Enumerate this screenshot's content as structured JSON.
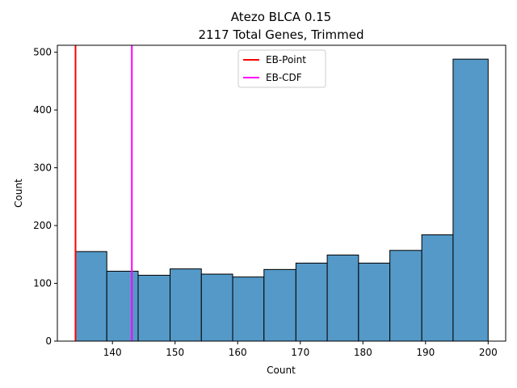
{
  "chart_data": {
    "type": "bar",
    "title": "Atezo BLCA 0.15",
    "subtitle": "2117 Total Genes, Trimmed",
    "xlabel": "Count",
    "ylabel": "Count",
    "xlim": [
      131.2,
      202.8
    ],
    "ylim": [
      0,
      512
    ],
    "xticks": [
      140,
      150,
      160,
      170,
      180,
      190,
      200
    ],
    "yticks": [
      0,
      100,
      200,
      300,
      400,
      500
    ],
    "bin_edges": [
      134.1,
      139.1,
      144.1,
      149.2,
      154.2,
      159.2,
      164.2,
      169.3,
      174.3,
      179.3,
      184.3,
      189.4,
      194.4,
      200.0
    ],
    "values": [
      155,
      121,
      114,
      125,
      116,
      111,
      124,
      135,
      149,
      135,
      157,
      184,
      488
    ],
    "bar_color": "#5499c7",
    "vlines": [
      {
        "name": "EB-Point",
        "x": 134.1,
        "color": "#ff0000"
      },
      {
        "name": "EB-CDF",
        "x": 143.1,
        "color": "#ff00ff"
      }
    ],
    "legend_position": "upper-center",
    "grid": false
  }
}
